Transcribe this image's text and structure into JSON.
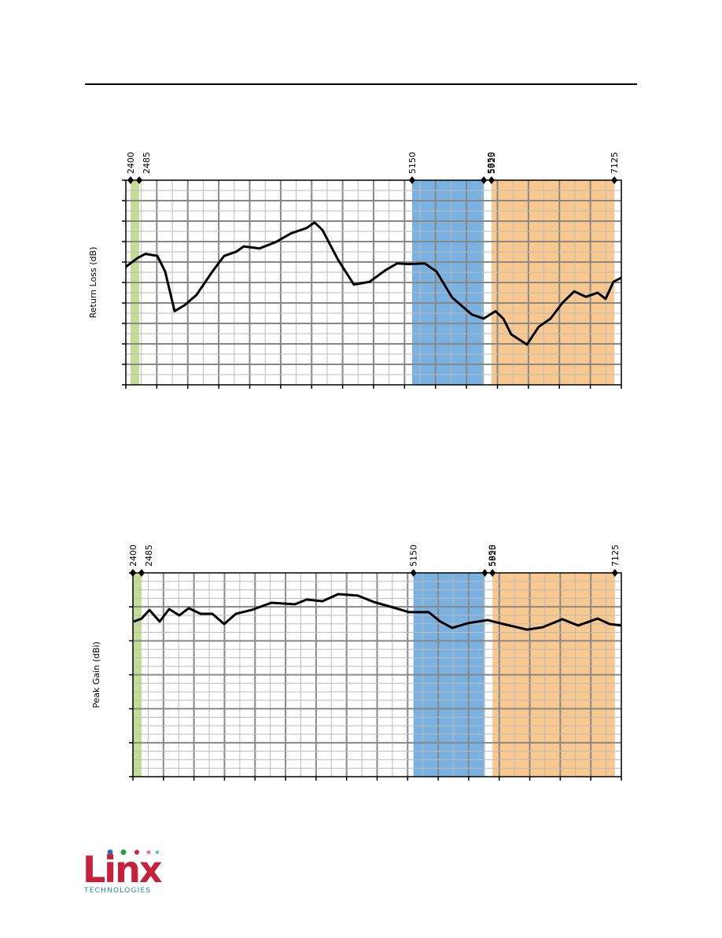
{
  "chart_data": [
    {
      "type": "line",
      "y_label": "Return Loss (dB)",
      "xlim": [
        2354,
        7193
      ],
      "ylim": [
        -30,
        0
      ],
      "grid": true,
      "color": "#000000",
      "bands": [
        {
          "from": 2400,
          "to": 2485,
          "color": "#c3dc96"
        },
        {
          "from": 5150,
          "to": 5850,
          "color": "#79b1e0"
        },
        {
          "from": 5925,
          "to": 7125,
          "color": "#f9c88e"
        }
      ],
      "x": [
        2354,
        2469,
        2546,
        2661,
        2738,
        2830,
        2930,
        3045,
        3199,
        3314,
        3429,
        3506,
        3660,
        3813,
        3967,
        4120,
        4197,
        4274,
        4428,
        4581,
        4735,
        4889,
        5004,
        5119,
        5273,
        5388,
        5541,
        5733,
        5849,
        5964,
        6041,
        6118,
        6271,
        6386,
        6502,
        6617,
        6732,
        6847,
        6962,
        7039,
        7116,
        7193
      ],
      "values": [
        -12.7,
        -11.4,
        -10.8,
        -11.1,
        -13.4,
        -19.2,
        -18.3,
        -16.8,
        -13.4,
        -11.1,
        -10.5,
        -9.7,
        -10.0,
        -9.1,
        -7.8,
        -7.0,
        -6.2,
        -7.3,
        -11.7,
        -15.3,
        -14.9,
        -13.2,
        -12.2,
        -12.3,
        -12.2,
        -13.4,
        -17.2,
        -19.7,
        -20.3,
        -19.2,
        -20.3,
        -22.6,
        -24.1,
        -21.5,
        -20.3,
        -18.0,
        -16.3,
        -17.1,
        -16.5,
        -17.4,
        -14.9,
        -14.3
      ]
    },
    {
      "type": "line",
      "y_label": "Peak Gain (dBi)",
      "xlim": [
        2400,
        7188
      ],
      "ylim": [
        -10,
        2
      ],
      "grid": true,
      "color": "#000000",
      "bands": [
        {
          "from": 2400,
          "to": 2485,
          "color": "#c3dc96"
        },
        {
          "from": 5150,
          "to": 5850,
          "color": "#79b1e0"
        },
        {
          "from": 5925,
          "to": 7125,
          "color": "#f9c88e"
        }
      ],
      "x": [
        2408,
        2485,
        2562,
        2662,
        2755,
        2855,
        2947,
        3063,
        3179,
        3294,
        3410,
        3564,
        3757,
        3988,
        4104,
        4258,
        4412,
        4605,
        4759,
        4952,
        5106,
        5299,
        5415,
        5530,
        5685,
        5878,
        6031,
        6263,
        6417,
        6610,
        6764,
        6957,
        7072,
        7188
      ],
      "values": [
        -0.87,
        -0.69,
        -0.18,
        -0.87,
        -0.13,
        -0.5,
        -0.08,
        -0.41,
        -0.41,
        -1.01,
        -0.41,
        -0.18,
        0.24,
        0.15,
        0.43,
        0.33,
        0.75,
        0.66,
        0.29,
        -0.04,
        -0.31,
        -0.31,
        -0.87,
        -1.24,
        -0.96,
        -0.78,
        -1.01,
        -1.34,
        -1.2,
        -0.73,
        -1.1,
        -0.69,
        -1.01,
        -1.1
      ]
    }
  ],
  "logo": {
    "name": "Linx",
    "tagline": "TECHNOLOGIES"
  }
}
